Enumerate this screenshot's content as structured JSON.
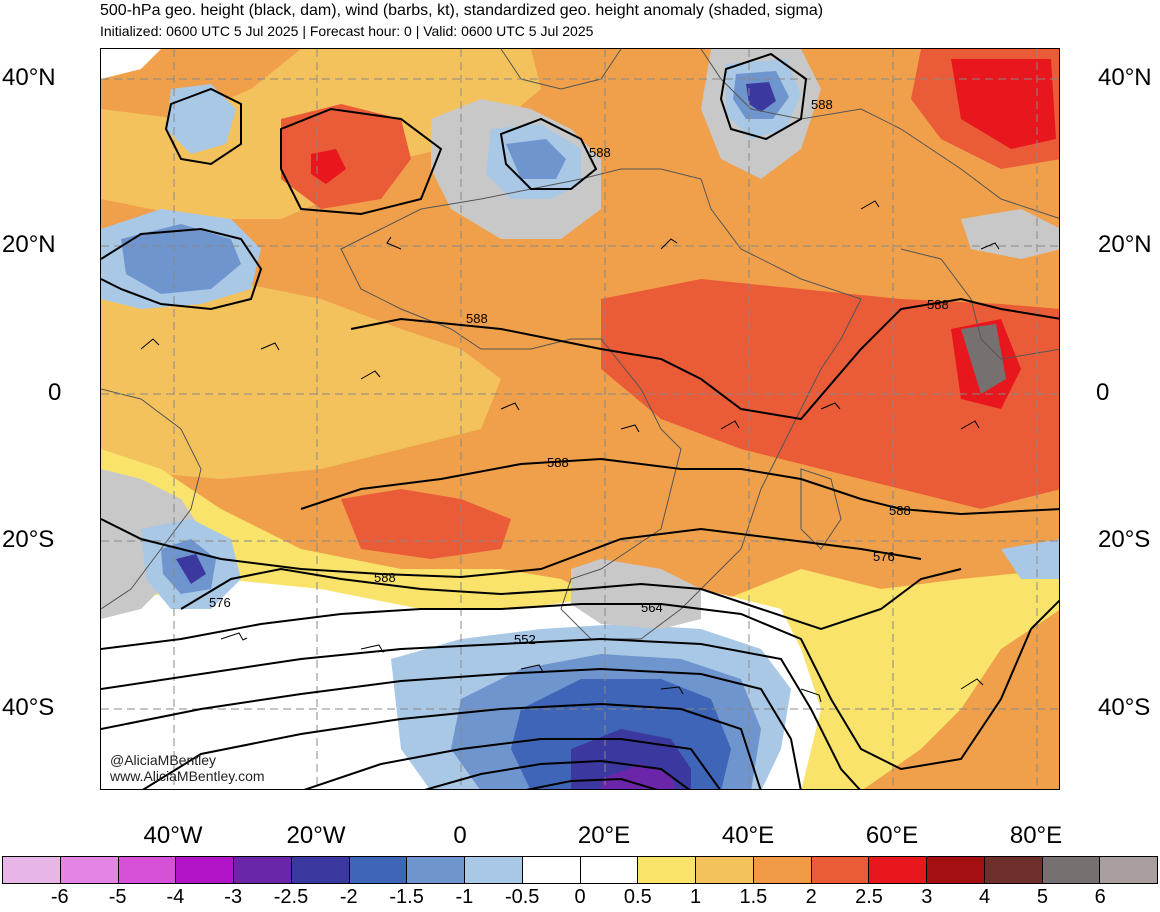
{
  "header": {
    "title": "500-hPa geo. height (black, dam), wind (barbs, kt), standardized geo. height anomaly (shaded, sigma)",
    "subtitle": "Initialized: 0600 UTC 5 Jul 2025 | Forecast hour: 0 | Valid: 0600 UTC 5 Jul 2025"
  },
  "axes": {
    "lat_labels_left": [
      "40°N",
      "20°N",
      "0",
      "20°S",
      "40°S"
    ],
    "lat_labels_right": [
      "40°N",
      "20°N",
      "0",
      "20°S",
      "40°S"
    ],
    "lon_labels": [
      "40°W",
      "20°W",
      "0",
      "20°E",
      "40°E",
      "60°E",
      "80°E"
    ]
  },
  "contour_labels": [
    "588",
    "588",
    "588",
    "588",
    "588",
    "588",
    "588",
    "576",
    "576",
    "564",
    "552"
  ],
  "credits": {
    "handle": "@AliciaMBentley",
    "website": "www.AliciaMBentley.com"
  },
  "colorbar": {
    "colors": [
      "#e8b6e6",
      "#e585e3",
      "#d650d8",
      "#b214c8",
      "#6a25a8",
      "#3b39a0",
      "#3f65b8",
      "#6f95cf",
      "#a8c8e6",
      "#ffffff",
      "#ffffff",
      "#f9e36a",
      "#f3c25c",
      "#f09a45",
      "#ea5c38",
      "#e8171d",
      "#a41012",
      "#6e2e29",
      "#777070",
      "#a99f9f"
    ],
    "tick_labels": [
      "-6",
      "-5",
      "-4",
      "-3",
      "-2.5",
      "-2",
      "-1.5",
      "-1",
      "-0.5",
      "0",
      "0.5",
      "1",
      "1.5",
      "2",
      "2.5",
      "3",
      "4",
      "5",
      "6"
    ]
  }
}
